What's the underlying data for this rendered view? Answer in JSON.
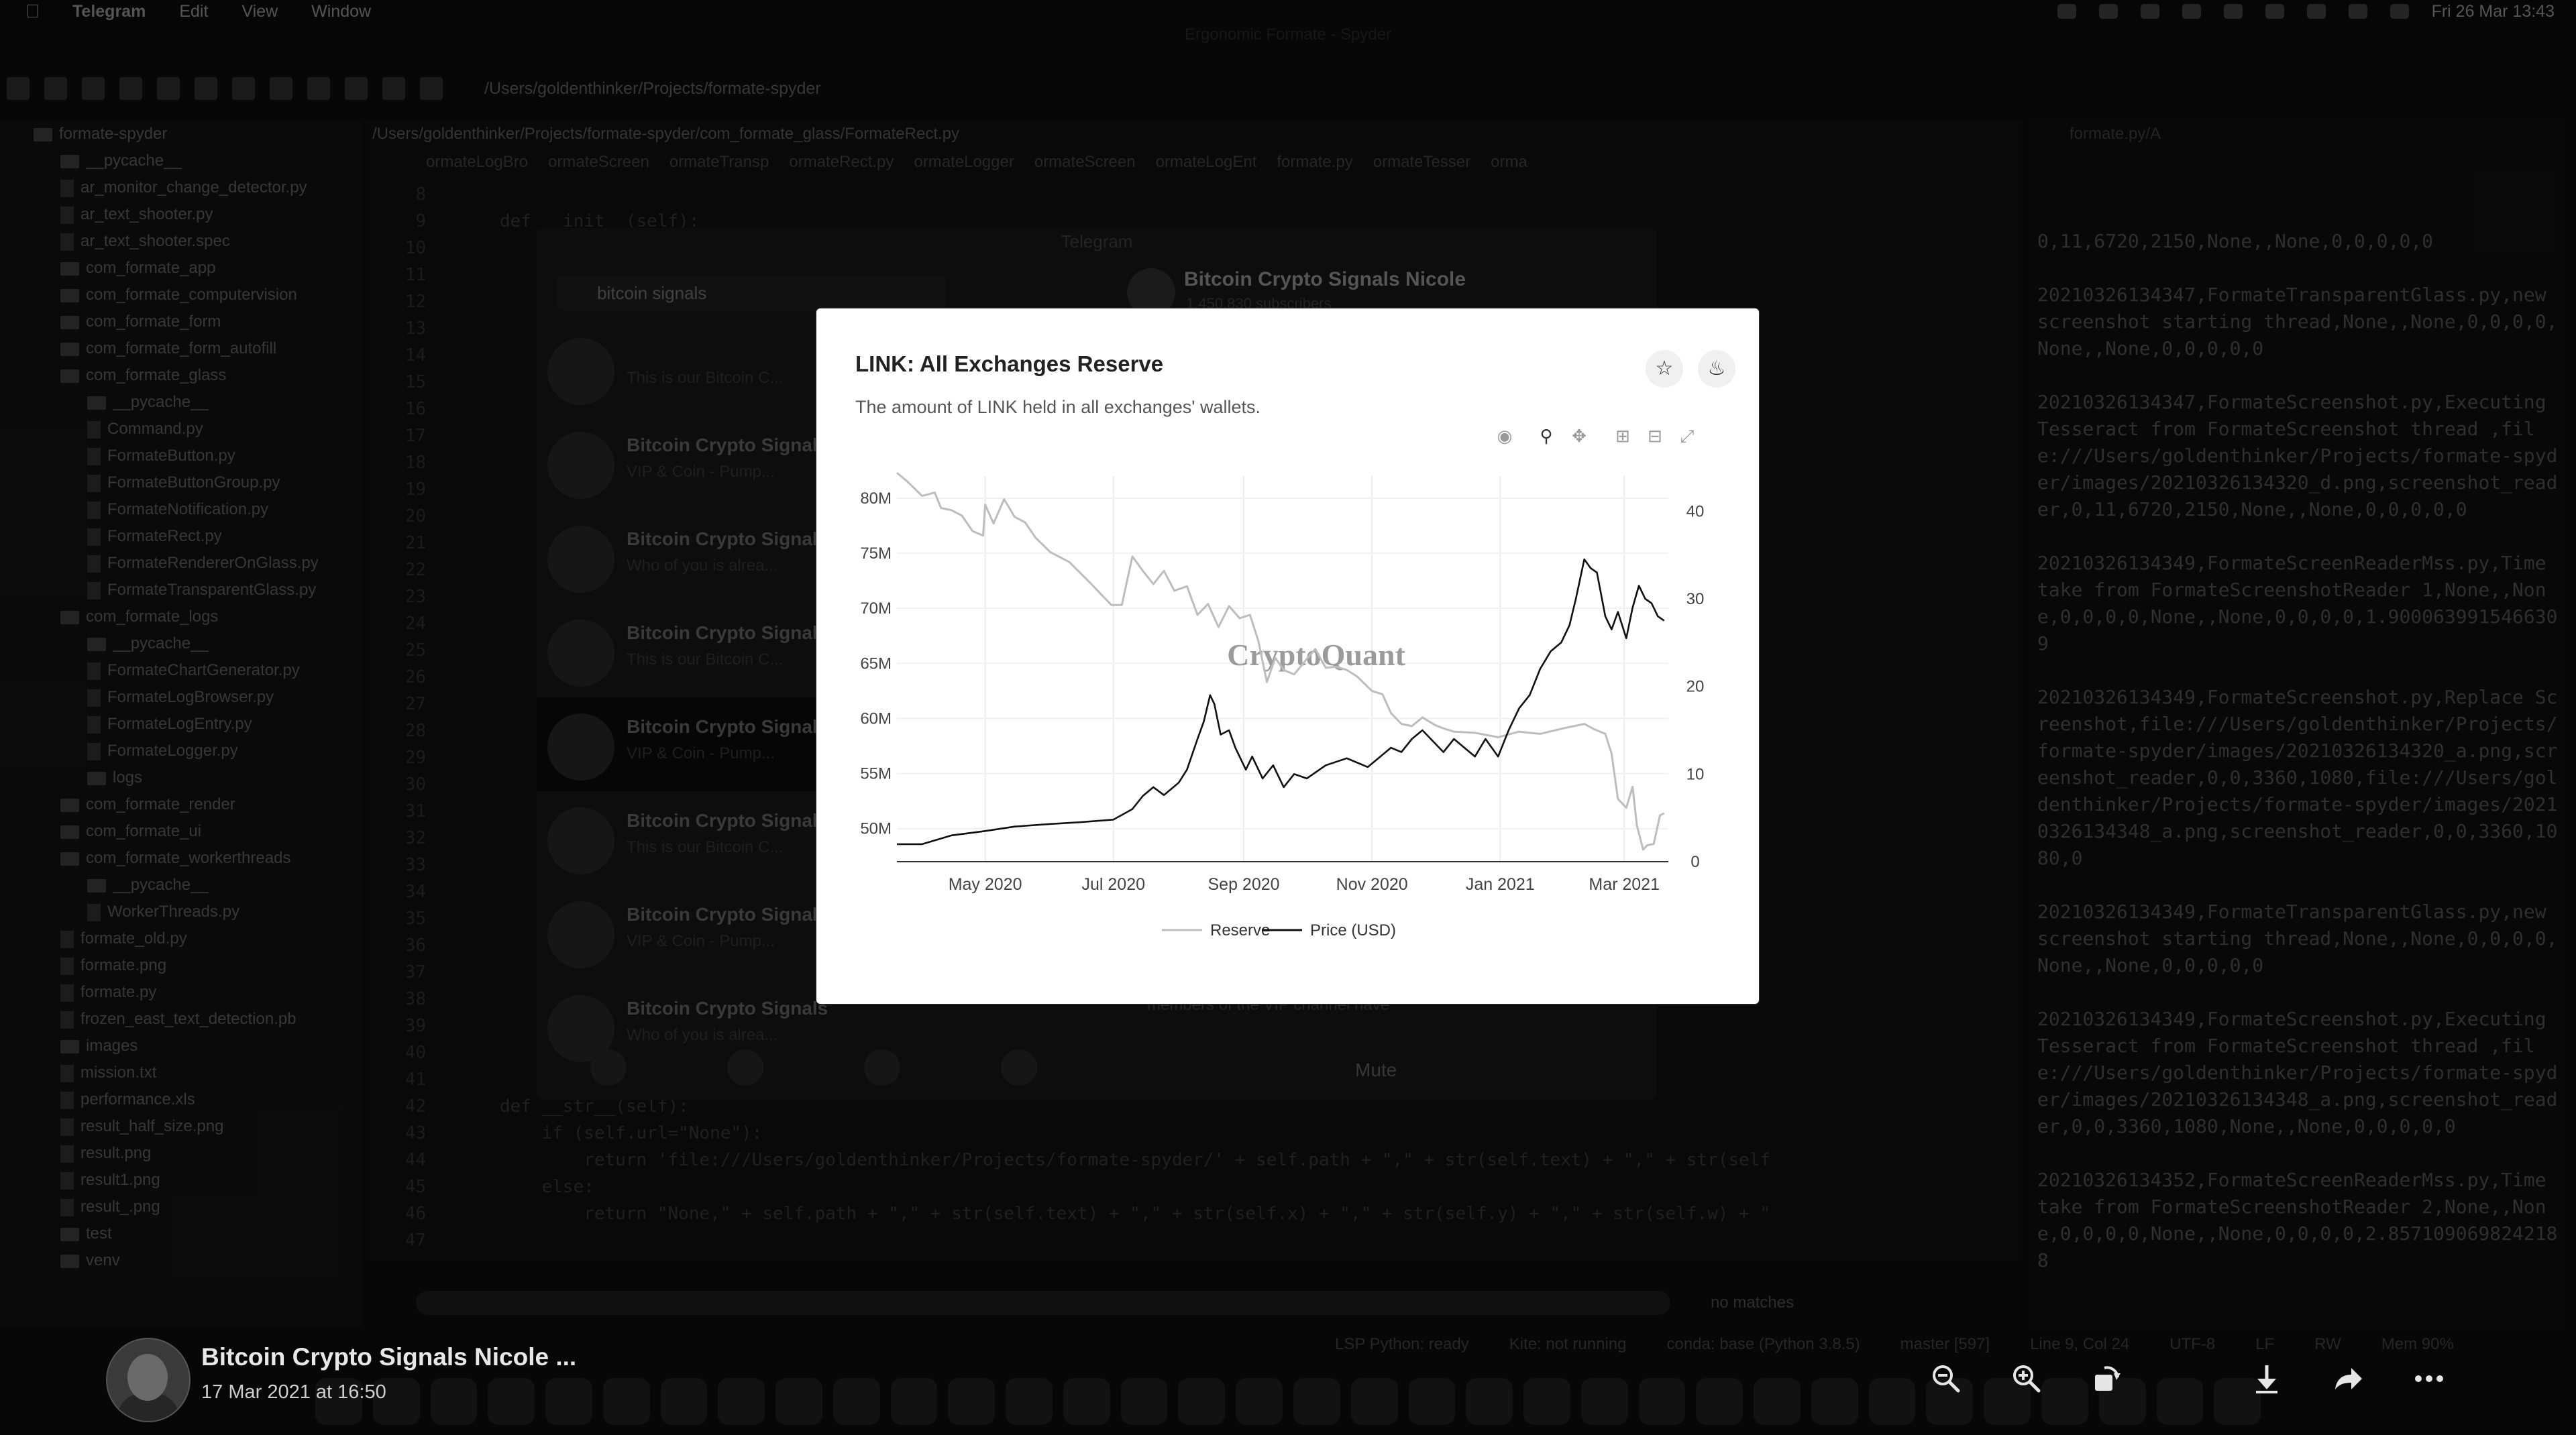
{
  "menubar": {
    "app": "Telegram",
    "items": [
      "Edit",
      "View",
      "Window"
    ],
    "clock": "Fri 26 Mar  13:43"
  },
  "ide": {
    "window_title": "Ergonomic Formate - Spyder",
    "toolbar_path": "/Users/goldenthinker/Projects/formate-spyder",
    "editor_path": "/Users/goldenthinker/Projects/formate-spyder/com_formate_glass/FormateRect.py",
    "tabs": [
      "ormateLogBro",
      "ormateScreen",
      "ormateTransp",
      "ormateRect.py",
      "ormateLogger",
      "ormateScreen",
      "ormateLogEnt",
      "formate.py",
      "ormateTesser",
      "orma"
    ],
    "file_tree": [
      {
        "type": "folder",
        "name": "formate-spyder",
        "indent": 0
      },
      {
        "type": "folder",
        "name": "__pycache__",
        "indent": 1
      },
      {
        "type": "file",
        "name": "ar_monitor_change_detector.py",
        "indent": 1
      },
      {
        "type": "file",
        "name": "ar_text_shooter.py",
        "indent": 1
      },
      {
        "type": "file",
        "name": "ar_text_shooter.spec",
        "indent": 1
      },
      {
        "type": "folder",
        "name": "com_formate_app",
        "indent": 1
      },
      {
        "type": "folder",
        "name": "com_formate_computervision",
        "indent": 1
      },
      {
        "type": "folder",
        "name": "com_formate_form",
        "indent": 1
      },
      {
        "type": "folder",
        "name": "com_formate_form_autofill",
        "indent": 1
      },
      {
        "type": "folder",
        "name": "com_formate_glass",
        "indent": 1
      },
      {
        "type": "folder",
        "name": "__pycache__",
        "indent": 2
      },
      {
        "type": "file",
        "name": "Command.py",
        "indent": 2
      },
      {
        "type": "file",
        "name": "FormateButton.py",
        "indent": 2
      },
      {
        "type": "file",
        "name": "FormateButtonGroup.py",
        "indent": 2
      },
      {
        "type": "file",
        "name": "FormateNotification.py",
        "indent": 2
      },
      {
        "type": "file",
        "name": "FormateRect.py",
        "indent": 2
      },
      {
        "type": "file",
        "name": "FormateRendererOnGlass.py",
        "indent": 2
      },
      {
        "type": "file",
        "name": "FormateTransparentGlass.py",
        "indent": 2
      },
      {
        "type": "folder",
        "name": "com_formate_logs",
        "indent": 1
      },
      {
        "type": "folder",
        "name": "__pycache__",
        "indent": 2
      },
      {
        "type": "file",
        "name": "FormateChartGenerator.py",
        "indent": 2
      },
      {
        "type": "file",
        "name": "FormateLogBrowser.py",
        "indent": 2
      },
      {
        "type": "file",
        "name": "FormateLogEntry.py",
        "indent": 2
      },
      {
        "type": "file",
        "name": "FormateLogger.py",
        "indent": 2
      },
      {
        "type": "folder",
        "name": "logs",
        "indent": 2
      },
      {
        "type": "folder",
        "name": "com_formate_render",
        "indent": 1
      },
      {
        "type": "folder",
        "name": "com_formate_ui",
        "indent": 1
      },
      {
        "type": "folder",
        "name": "com_formate_workerthreads",
        "indent": 1
      },
      {
        "type": "folder",
        "name": "__pycache__",
        "indent": 2
      },
      {
        "type": "file",
        "name": "WorkerThreads.py",
        "indent": 2
      },
      {
        "type": "file",
        "name": "formate_old.py",
        "indent": 1
      },
      {
        "type": "file",
        "name": "formate.png",
        "indent": 1
      },
      {
        "type": "file",
        "name": "formate.py",
        "indent": 1
      },
      {
        "type": "file",
        "name": "frozen_east_text_detection.pb",
        "indent": 1
      },
      {
        "type": "folder",
        "name": "images",
        "indent": 1
      },
      {
        "type": "file",
        "name": "mission.txt",
        "indent": 1
      },
      {
        "type": "file",
        "name": "performance.xls",
        "indent": 1
      },
      {
        "type": "file",
        "name": "result_half_size.png",
        "indent": 1
      },
      {
        "type": "file",
        "name": "result.png",
        "indent": 1
      },
      {
        "type": "file",
        "name": "result1.png",
        "indent": 1
      },
      {
        "type": "file",
        "name": "result_.png",
        "indent": 1
      },
      {
        "type": "folder",
        "name": "test",
        "indent": 1
      },
      {
        "type": "folder",
        "name": "venv",
        "indent": 1
      }
    ],
    "line_numbers": [
      "8",
      "9",
      "10",
      "11",
      "12",
      "13",
      "14",
      "15",
      "16",
      "17",
      "18",
      "19",
      "20",
      "21",
      "22",
      "23",
      "24",
      "25",
      "26",
      "27",
      "28",
      "29",
      "30",
      "31",
      "32",
      "33",
      "34",
      "35",
      "36",
      "37",
      "38",
      "39",
      "40",
      "41",
      "42",
      "43",
      "44",
      "45",
      "46",
      "47"
    ],
    "code_lines": [
      "",
      "def __init__(self):",
      "",
      "",
      "",
      "",
      "",
      "",
      "",
      "",
      "",
      "",
      "",
      "",
      "",
      "",
      "",
      "",
      "",
      "",
      "",
      "",
      "",
      "",
      "",
      "",
      "",
      "",
      "",
      "",
      "",
      "",
      "",
      "",
      "def __str__(self):",
      "    if (self.url=\"None\"):",
      "        return 'file:///Users/goldenthinker/Projects/formate-spyder/' + self.path + \",\" + str(self.text) + \",\" + str(self",
      "    else:",
      "        return \"None,\" + self.path + \",\" + str(self.text) + \",\" + str(self.x) + \",\" + str(self.y) + \",\" + str(self.w) + \"",
      ""
    ],
    "console_tab": "formate.py/A",
    "console_text": "0,11,6720,2150,None,,None,0,0,0,0,0\n\n20210326134347,FormateTransparentGlass.py,new screenshot starting thread,None,,None,0,0,0,0,None,,None,0,0,0,0,0\n\n20210326134347,FormateScreenshot.py,Executing Tesseract from FormateScreenshot thread ,file:///Users/goldenthinker/Projects/formate-spyder/images/20210326134320_d.png,screenshot_reader,0,11,6720,2150,None,,None,0,0,0,0,0\n\n20210326134349,FormateScreenReaderMss.py,Time take from FormateScreenshotReader 1,None,,None,0,0,0,0,None,,None,0,0,0,0,1.9000639915466309\n\n20210326134349,FormateScreenshot.py,Replace Screenshot,file:///Users/goldenthinker/Projects/formate-spyder/images/20210326134320_a.png,screenshot_reader,0,0,3360,1080,file:///Users/goldenthinker/Projects/formate-spyder/images/20210326134348_a.png,screenshot_reader,0,0,3360,1080,0\n\n20210326134349,FormateTransparentGlass.py,new screenshot starting thread,None,,None,0,0,0,0,None,,None,0,0,0,0,0\n\n20210326134349,FormateScreenshot.py,Executing Tesseract from FormateScreenshot thread ,file:///Users/goldenthinker/Projects/formate-spyder/images/20210326134348_a.png,screenshot_reader,0,0,3360,1080,None,,None,0,0,0,0,0\n\n20210326134352,FormateScreenReaderMss.py,Time take from FormateScreenshotReader 2,None,,None,0,0,0,0,None,,None,0,0,0,0,2.8571090698242188",
    "search_status": "no matches",
    "status": [
      "LSP Python: ready",
      "Kite: not running",
      "conda: base (Python 3.8.5)",
      "master [597]",
      "Line 9, Col 24",
      "UTF-8",
      "LF",
      "RW",
      "Mem 90%"
    ]
  },
  "telegram": {
    "window_title": "Telegram",
    "search_value": "bitcoin signals",
    "chat_header": "Bitcoin Crypto Signals Nicole",
    "chat_sub": "1,450,830 subscribers",
    "chats": [
      {
        "name": "",
        "preview": "This is our Bitcoin C..."
      },
      {
        "name": "Bitcoin Crypto Signals",
        "preview": "VIP & Coin - Pump..."
      },
      {
        "name": "Bitcoin Crypto Signals",
        "preview": "Who of you is alrea..."
      },
      {
        "name": "Bitcoin Crypto Signals",
        "preview": "This is our Bitcoin C..."
      },
      {
        "name": "Bitcoin Crypto Signals",
        "preview": "VIP & Coin - Pump..."
      },
      {
        "name": "Bitcoin Crypto Signals",
        "preview": "This is our Bitcoin C..."
      },
      {
        "name": "Bitcoin Crypto Signals",
        "preview": "VIP & Coin - Pump..."
      },
      {
        "name": "Bitcoin Crypto Signals",
        "preview": "Who of you is alrea..."
      }
    ],
    "mute_label": "Mute",
    "vip_note": "members of the VIP channel have"
  },
  "chart_card": {
    "title": "LINK: All Exchanges Reserve",
    "subtitle": "The amount of LINK held in all exchanges' wallets.",
    "watermark": "CryptoQuant",
    "icons": [
      "star-icon",
      "bell-icon",
      "camera-icon",
      "zoom-icon",
      "pan-icon",
      "zoom-in-icon",
      "zoom-out-icon",
      "autoscale-icon"
    ]
  },
  "chart_data": {
    "type": "line",
    "title": "LINK: All Exchanges Reserve",
    "subtitle": "The amount of LINK held in all exchanges' wallets.",
    "x_ticks": [
      "May 2020",
      "Jul 2020",
      "Sep 2020",
      "Nov 2020",
      "Jan 2021",
      "Mar 2021"
    ],
    "y_left_ticks": [
      "50M",
      "55M",
      "60M",
      "65M",
      "70M",
      "75M",
      "80M"
    ],
    "y_right_ticks": [
      "0",
      "10",
      "20",
      "30",
      "40"
    ],
    "y_left_range": [
      47,
      82
    ],
    "y_right_range": [
      0,
      44
    ],
    "legend_position": "bottom",
    "x_start": "2020-03-20",
    "series": [
      {
        "name": "Reserve",
        "axis": "left",
        "color": "#bdbdbd",
        "points": [
          [
            "2020-03-20",
            82.3
          ],
          [
            "2020-03-25",
            81.5
          ],
          [
            "2020-04-01",
            80.2
          ],
          [
            "2020-04-07",
            80.5
          ],
          [
            "2020-04-10",
            79.1
          ],
          [
            "2020-04-15",
            78.9
          ],
          [
            "2020-04-20",
            78.4
          ],
          [
            "2020-04-25",
            77.0
          ],
          [
            "2020-04-30",
            76.6
          ],
          [
            "2020-05-01",
            79.4
          ],
          [
            "2020-05-05",
            77.7
          ],
          [
            "2020-05-10",
            79.9
          ],
          [
            "2020-05-15",
            78.3
          ],
          [
            "2020-05-20",
            77.8
          ],
          [
            "2020-05-25",
            76.4
          ],
          [
            "2020-06-01",
            75.1
          ],
          [
            "2020-06-10",
            74.2
          ],
          [
            "2020-06-20",
            72.3
          ],
          [
            "2020-06-30",
            70.3
          ],
          [
            "2020-07-05",
            70.3
          ],
          [
            "2020-07-10",
            74.7
          ],
          [
            "2020-07-15",
            73.4
          ],
          [
            "2020-07-20",
            72.2
          ],
          [
            "2020-07-25",
            73.4
          ],
          [
            "2020-07-30",
            71.6
          ],
          [
            "2020-08-05",
            72.0
          ],
          [
            "2020-08-10",
            69.4
          ],
          [
            "2020-08-15",
            70.4
          ],
          [
            "2020-08-20",
            68.3
          ],
          [
            "2020-08-25",
            70.2
          ],
          [
            "2020-08-30",
            69.1
          ],
          [
            "2020-09-04",
            69.4
          ],
          [
            "2020-09-08",
            67.0
          ],
          [
            "2020-09-12",
            63.3
          ],
          [
            "2020-09-16",
            65.5
          ],
          [
            "2020-09-20",
            64.4
          ],
          [
            "2020-09-25",
            64.0
          ],
          [
            "2020-10-01",
            65.4
          ],
          [
            "2020-10-05",
            66.3
          ],
          [
            "2020-10-10",
            64.6
          ],
          [
            "2020-10-15",
            64.7
          ],
          [
            "2020-10-20",
            64.4
          ],
          [
            "2020-10-25",
            63.8
          ],
          [
            "2020-11-01",
            62.5
          ],
          [
            "2020-11-06",
            62.2
          ],
          [
            "2020-11-10",
            60.5
          ],
          [
            "2020-11-15",
            59.5
          ],
          [
            "2020-11-20",
            59.3
          ],
          [
            "2020-11-25",
            60.1
          ],
          [
            "2020-12-01",
            59.4
          ],
          [
            "2020-12-05",
            59.1
          ],
          [
            "2020-12-10",
            58.8
          ],
          [
            "2020-12-20",
            58.7
          ],
          [
            "2020-12-31",
            58.3
          ],
          [
            "2021-01-10",
            58.8
          ],
          [
            "2021-01-20",
            58.6
          ],
          [
            "2021-01-31",
            59.1
          ],
          [
            "2021-02-10",
            59.5
          ],
          [
            "2021-02-15",
            59.0
          ],
          [
            "2021-02-20",
            58.6
          ],
          [
            "2021-02-23",
            56.8
          ],
          [
            "2021-02-26",
            52.7
          ],
          [
            "2021-03-02",
            51.9
          ],
          [
            "2021-03-05",
            53.8
          ],
          [
            "2021-03-07",
            50.3
          ],
          [
            "2021-03-10",
            48.1
          ],
          [
            "2021-03-12",
            48.5
          ],
          [
            "2021-03-15",
            48.6
          ],
          [
            "2021-03-18",
            51.2
          ],
          [
            "2021-03-20",
            51.4
          ]
        ]
      },
      {
        "name": "Price (USD)",
        "axis": "right",
        "color": "#111111",
        "points": [
          [
            "2020-03-20",
            2.0
          ],
          [
            "2020-04-01",
            2.0
          ],
          [
            "2020-04-15",
            3.0
          ],
          [
            "2020-05-01",
            3.5
          ],
          [
            "2020-05-15",
            4.0
          ],
          [
            "2020-06-01",
            4.3
          ],
          [
            "2020-06-15",
            4.5
          ],
          [
            "2020-07-01",
            4.8
          ],
          [
            "2020-07-10",
            6.0
          ],
          [
            "2020-07-15",
            7.5
          ],
          [
            "2020-07-20",
            8.5
          ],
          [
            "2020-07-25",
            7.6
          ],
          [
            "2020-08-01",
            9.0
          ],
          [
            "2020-08-05",
            10.5
          ],
          [
            "2020-08-10",
            14.0
          ],
          [
            "2020-08-13",
            16.0
          ],
          [
            "2020-08-16",
            19.0
          ],
          [
            "2020-08-18",
            18.0
          ],
          [
            "2020-08-21",
            14.5
          ],
          [
            "2020-08-25",
            15.0
          ],
          [
            "2020-08-28",
            13.0
          ],
          [
            "2020-09-02",
            10.5
          ],
          [
            "2020-09-05",
            12.0
          ],
          [
            "2020-09-10",
            9.5
          ],
          [
            "2020-09-15",
            11.0
          ],
          [
            "2020-09-20",
            8.5
          ],
          [
            "2020-09-25",
            10.0
          ],
          [
            "2020-10-01",
            9.5
          ],
          [
            "2020-10-10",
            11.0
          ],
          [
            "2020-10-20",
            11.8
          ],
          [
            "2020-10-30",
            10.8
          ],
          [
            "2020-11-05",
            12.0
          ],
          [
            "2020-11-10",
            13.0
          ],
          [
            "2020-11-15",
            12.5
          ],
          [
            "2020-11-20",
            14.0
          ],
          [
            "2020-11-25",
            15.0
          ],
          [
            "2020-12-01",
            13.5
          ],
          [
            "2020-12-05",
            12.5
          ],
          [
            "2020-12-10",
            14.0
          ],
          [
            "2020-12-15",
            13.0
          ],
          [
            "2020-12-20",
            12.0
          ],
          [
            "2020-12-25",
            14.0
          ],
          [
            "2020-12-31",
            12.0
          ],
          [
            "2021-01-05",
            15.0
          ],
          [
            "2021-01-10",
            17.5
          ],
          [
            "2021-01-15",
            19.0
          ],
          [
            "2021-01-20",
            22.0
          ],
          [
            "2021-01-25",
            24.0
          ],
          [
            "2021-01-30",
            25.0
          ],
          [
            "2021-02-03",
            27.0
          ],
          [
            "2021-02-06",
            30.0
          ],
          [
            "2021-02-10",
            34.5
          ],
          [
            "2021-02-13",
            33.5
          ],
          [
            "2021-02-16",
            33.0
          ],
          [
            "2021-02-20",
            28.0
          ],
          [
            "2021-02-23",
            26.5
          ],
          [
            "2021-02-26",
            28.5
          ],
          [
            "2021-03-02",
            25.5
          ],
          [
            "2021-03-05",
            29.0
          ],
          [
            "2021-03-08",
            31.5
          ],
          [
            "2021-03-11",
            30.0
          ],
          [
            "2021-03-14",
            29.5
          ],
          [
            "2021-03-17",
            28.0
          ],
          [
            "2021-03-20",
            27.5
          ]
        ]
      }
    ]
  },
  "viewer": {
    "channel_name": "Bitcoin Crypto Signals Nicole ...",
    "date": "17 Mar 2021 at 16:50"
  }
}
